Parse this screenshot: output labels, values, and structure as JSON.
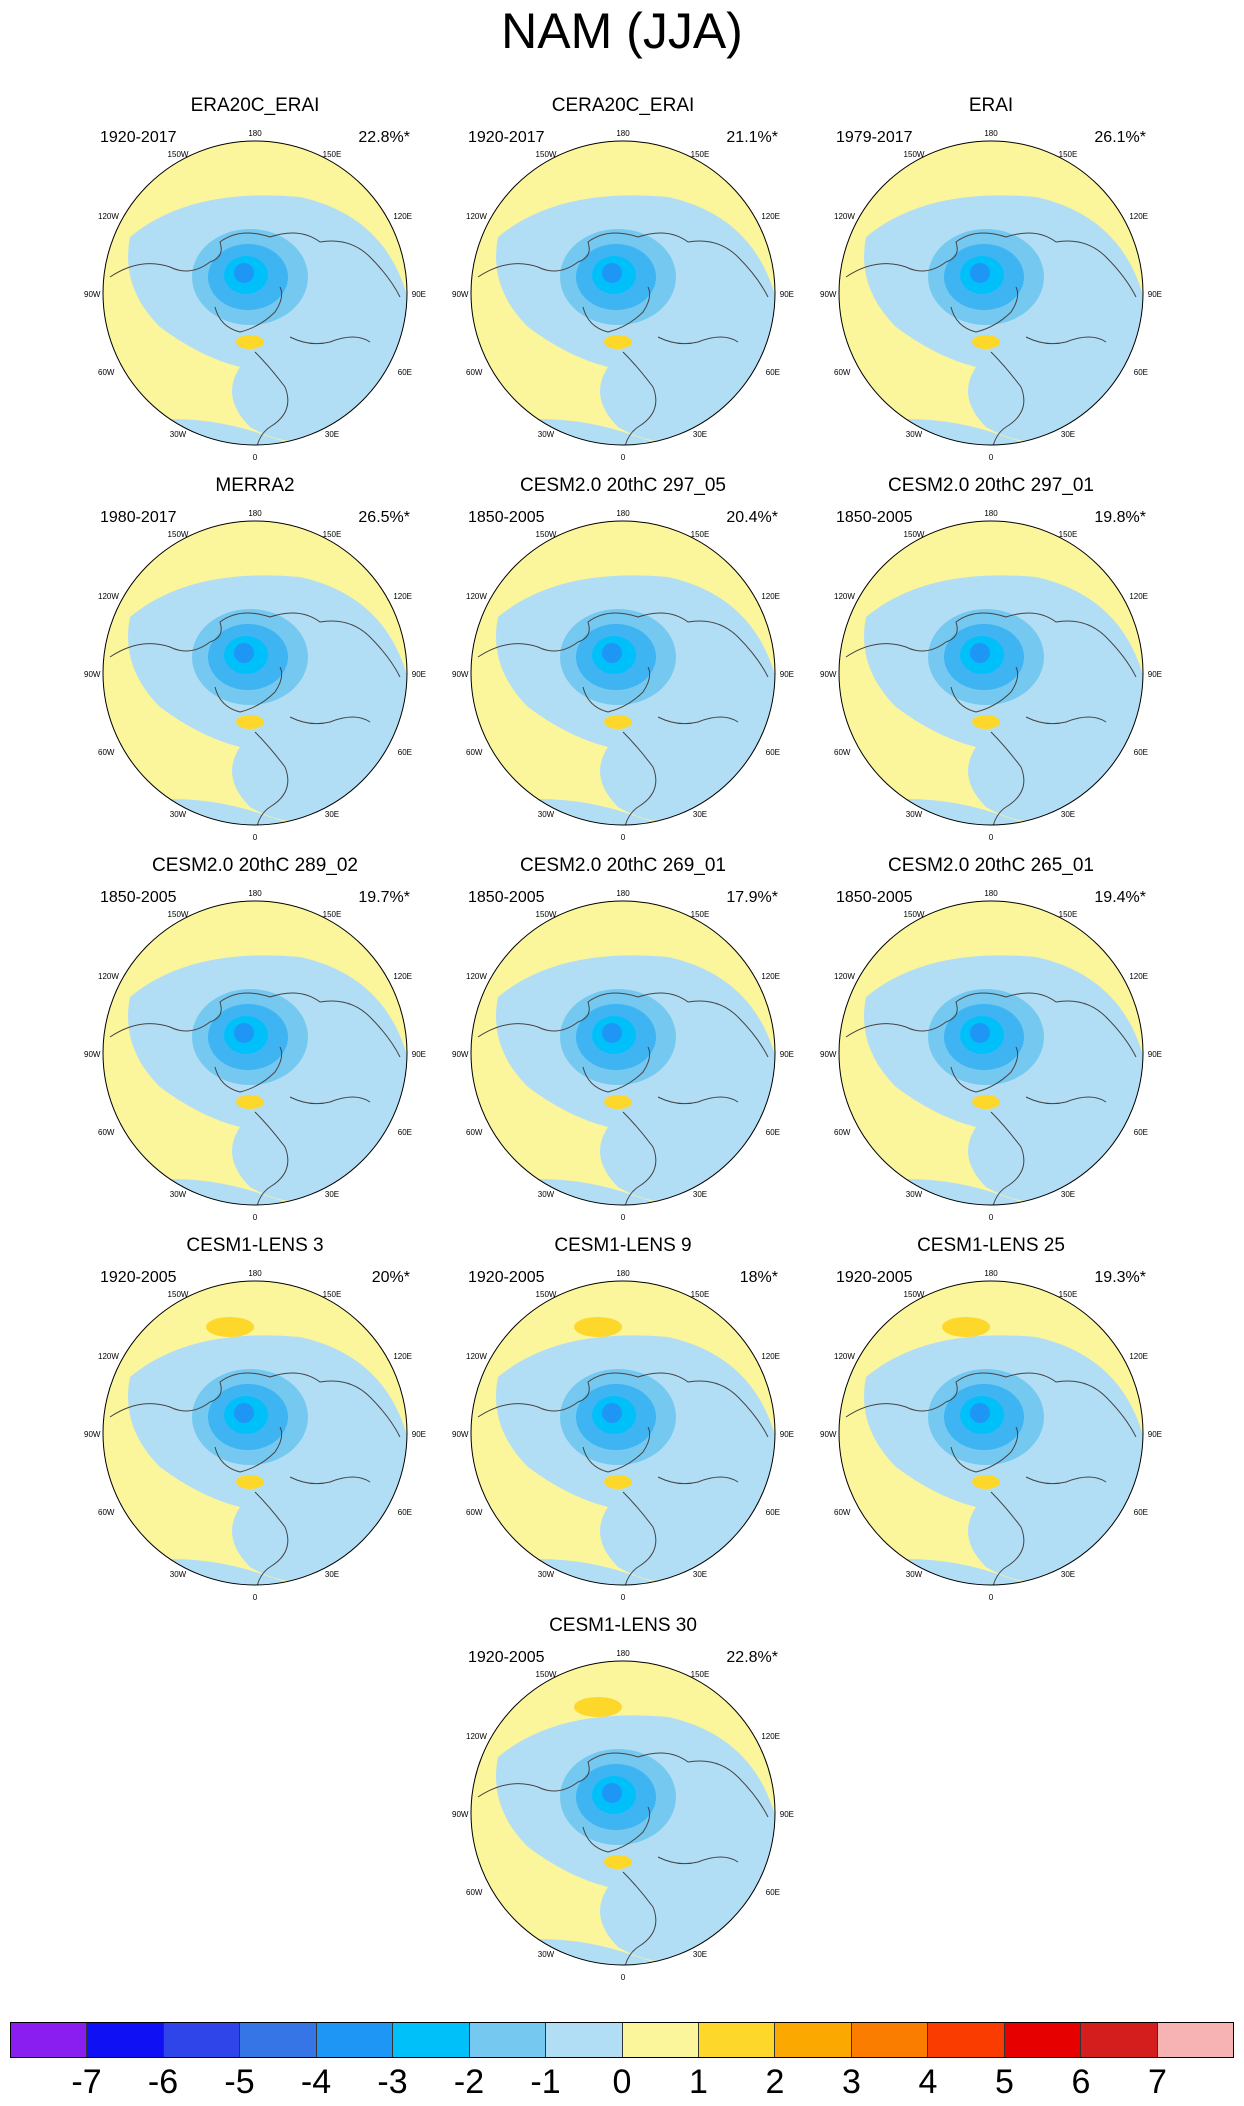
{
  "figure_title": "NAM (JJA)",
  "longitude_labels": {
    "lon_180": "180",
    "lon_150w": "150W",
    "lon_150e": "150E",
    "lon_120w": "120W",
    "lon_120e": "120E",
    "lon_90w": "90W",
    "lon_90e": "90E",
    "lon_60w": "60W",
    "lon_60e": "60E",
    "lon_30w": "30W",
    "lon_30e": "30E",
    "lon_0": "0"
  },
  "panels": [
    {
      "title": "ERA20C_ERAI",
      "period": "1920-2017",
      "variance": "22.8%*"
    },
    {
      "title": "CERA20C_ERAI",
      "period": "1920-2017",
      "variance": "21.1%*"
    },
    {
      "title": "ERAI",
      "period": "1979-2017",
      "variance": "26.1%*"
    },
    {
      "title": "MERRA2",
      "period": "1980-2017",
      "variance": "26.5%*"
    },
    {
      "title": "CESM2.0 20thC 297_05",
      "period": "1850-2005",
      "variance": "20.4%*"
    },
    {
      "title": "CESM2.0 20thC 297_01",
      "period": "1850-2005",
      "variance": "19.8%*"
    },
    {
      "title": "CESM2.0 20thC 289_02",
      "period": "1850-2005",
      "variance": "19.7%*"
    },
    {
      "title": "CESM2.0 20thC 269_01",
      "period": "1850-2005",
      "variance": "17.9%*"
    },
    {
      "title": "CESM2.0 20thC 265_01",
      "period": "1850-2005",
      "variance": "19.4%*"
    },
    {
      "title": "CESM1-LENS 3",
      "period": "1920-2005",
      "variance": "20%*"
    },
    {
      "title": "CESM1-LENS 9",
      "period": "1920-2005",
      "variance": "18%*"
    },
    {
      "title": "CESM1-LENS 25",
      "period": "1920-2005",
      "variance": "19.3%*"
    },
    {
      "title": "CESM1-LENS 30",
      "period": "1920-2005",
      "variance": "22.8%*"
    }
  ],
  "colorbar": {
    "colors": [
      "#8a1ef0",
      "#1010f5",
      "#2f45ea",
      "#3575e6",
      "#1e96f5",
      "#00c0fa",
      "#75c9f0",
      "#b2def5",
      "#fbf59c",
      "#fdd82a",
      "#fba800",
      "#fb7d00",
      "#fb3c00",
      "#e60000",
      "#d41e1e",
      "#f7b3b3"
    ],
    "ticks": [
      "-7",
      "-6",
      "-5",
      "-4",
      "-3",
      "-2",
      "-1",
      "0",
      "1",
      "2",
      "3",
      "4",
      "5",
      "6",
      "7"
    ]
  },
  "palette": {
    "yellow": "#fbf59c",
    "light_blue": "#b2def5",
    "mid_blue": "#75c9f0",
    "cyan": "#00c0fa",
    "blue": "#1e96f5",
    "orange": "#fdd82a"
  }
}
